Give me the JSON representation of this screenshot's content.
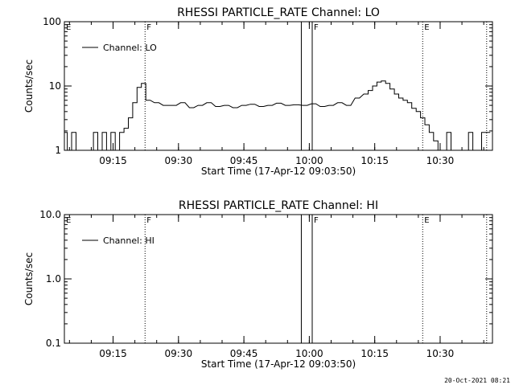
{
  "chart_data": [
    {
      "type": "line",
      "title": "RHESSI PARTICLE_RATE Channel: LO",
      "xlabel": "Start Time (17-Apr-12 09:03:50)",
      "ylabel": "Counts/sec",
      "yscale": "log",
      "ylim": [
        1,
        100
      ],
      "xlim": [
        "09:03:50",
        "10:42:00"
      ],
      "xticks": [
        "09:15",
        "09:30",
        "09:45",
        "10:00",
        "10:15",
        "10:30"
      ],
      "yticks": [
        "1",
        "10",
        "100"
      ],
      "legend": {
        "label": "Channel: LO",
        "position": "top-left"
      },
      "markers": [
        {
          "label": "E",
          "time": "09:03:50",
          "style": "dotted"
        },
        {
          "label": "F",
          "time": "09:22:20",
          "style": "dotted"
        },
        {
          "label": "",
          "time": "09:58:10",
          "style": "solid"
        },
        {
          "label": "F",
          "time": "10:00:40",
          "style": "solid"
        },
        {
          "label": "E",
          "time": "10:26:00",
          "style": "dotted"
        },
        {
          "label": "",
          "time": "10:40:40",
          "style": "dotted"
        }
      ],
      "series": [
        {
          "x": [
            "09:04:00",
            "09:05:00",
            "09:06:00",
            "09:07:00",
            "09:08:00",
            "09:09:00",
            "09:10:00",
            "09:11:00",
            "09:12:00",
            "09:13:00",
            "09:14:00",
            "09:15:00",
            "09:16:00",
            "09:17:00",
            "09:18:00",
            "09:19:00",
            "09:20:00",
            "09:21:00",
            "09:22:00",
            "09:23:00",
            "09:25:00",
            "09:27:00",
            "09:29:00",
            "09:31:00",
            "09:33:00",
            "09:35:00",
            "09:37:00",
            "09:39:00",
            "09:41:00",
            "09:43:00",
            "09:45:00",
            "09:47:00",
            "09:49:00",
            "09:51:00",
            "09:53:00",
            "09:55:00",
            "09:57:00",
            "09:59:00",
            "10:01:00",
            "10:03:00",
            "10:05:00",
            "10:07:00",
            "10:09:00",
            "10:11:00",
            "10:13:00",
            "10:14:00",
            "10:15:00",
            "10:16:00",
            "10:17:00",
            "10:18:00",
            "10:19:00",
            "10:20:00",
            "10:21:00",
            "10:22:00",
            "10:23:00",
            "10:24:00",
            "10:25:00",
            "10:26:00",
            "10:27:00",
            "10:28:00",
            "10:29:00",
            "10:30:00",
            "10:31:00",
            "10:32:00",
            "10:33:00",
            "10:34:00",
            "10:35:00",
            "10:36:00",
            "10:37:00",
            "10:38:00",
            "10:39:00",
            "10:40:00",
            "10:41:00"
          ],
          "y": [
            1.9,
            1,
            1.9,
            1,
            1,
            1,
            1,
            1.9,
            1,
            1.9,
            1,
            1.9,
            1,
            1.9,
            2.2,
            3.2,
            5.5,
            9.5,
            11,
            6,
            5.5,
            5,
            5,
            5.5,
            4.6,
            5,
            5.5,
            4.8,
            5,
            4.6,
            5,
            5.2,
            4.8,
            5,
            5.4,
            5,
            5.1,
            5,
            5.3,
            4.8,
            5,
            5.5,
            5,
            6.5,
            7.5,
            8.5,
            10,
            11.5,
            12,
            11,
            9,
            7.5,
            6.5,
            6,
            5.5,
            4.5,
            4,
            3.2,
            2.5,
            1.9,
            1.4,
            1,
            1,
            1.9,
            1,
            1,
            1,
            1,
            1.9,
            1,
            1,
            1.9,
            1.9
          ]
        }
      ]
    },
    {
      "type": "line",
      "title": "RHESSI PARTICLE_RATE Channel: HI",
      "xlabel": "Start Time (17-Apr-12 09:03:50)",
      "ylabel": "Counts/sec",
      "yscale": "log",
      "ylim": [
        0.1,
        10
      ],
      "xlim": [
        "09:03:50",
        "10:42:00"
      ],
      "xticks": [
        "09:15",
        "09:30",
        "09:45",
        "10:00",
        "10:15",
        "10:30"
      ],
      "yticks": [
        "0.1",
        "1.0",
        "10.0"
      ],
      "legend": {
        "label": "Channel: HI",
        "position": "top-left"
      },
      "markers": [
        {
          "label": "E",
          "time": "09:03:50",
          "style": "dotted"
        },
        {
          "label": "F",
          "time": "09:22:20",
          "style": "dotted"
        },
        {
          "label": "",
          "time": "09:58:10",
          "style": "solid"
        },
        {
          "label": "F",
          "time": "10:00:40",
          "style": "solid"
        },
        {
          "label": "E",
          "time": "10:26:00",
          "style": "dotted"
        },
        {
          "label": "",
          "time": "10:40:40",
          "style": "dotted"
        }
      ],
      "series": [
        {
          "x": [],
          "y": []
        }
      ]
    }
  ],
  "timestamp": "20-Oct-2021 08:21"
}
